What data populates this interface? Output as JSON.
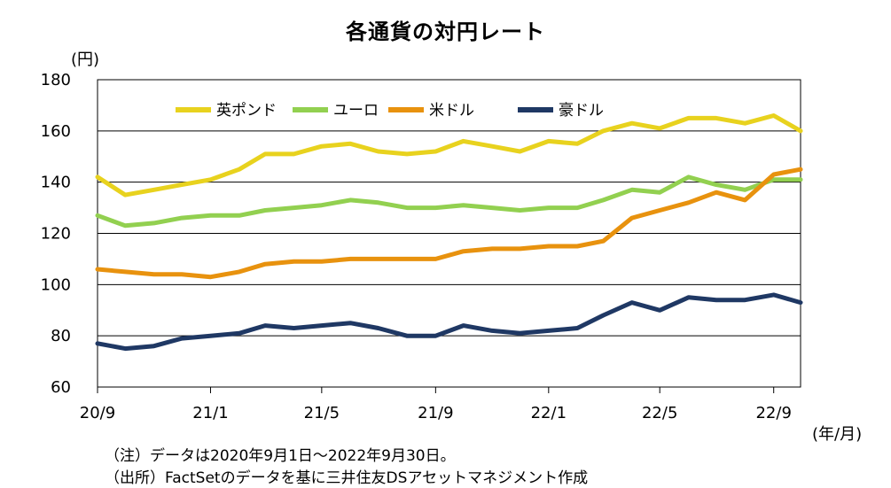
{
  "chart_data": {
    "type": "line",
    "title": "各通貨の対円レート",
    "y_unit": "(円)",
    "x_unit": "(年/月)",
    "ylim": [
      60,
      180
    ],
    "yticks": [
      60,
      80,
      100,
      120,
      140,
      160,
      180
    ],
    "xlim": [
      "2020-09-01",
      "2022-09-30"
    ],
    "xticks": [
      {
        "label": "20/9",
        "date": "2020-09-01"
      },
      {
        "label": "21/1",
        "date": "2021-01-01"
      },
      {
        "label": "21/5",
        "date": "2021-05-01"
      },
      {
        "label": "21/9",
        "date": "2021-09-01"
      },
      {
        "label": "22/1",
        "date": "2022-01-01"
      },
      {
        "label": "22/5",
        "date": "2022-05-01"
      },
      {
        "label": "22/9",
        "date": "2022-09-01"
      }
    ],
    "grid": "horizontal",
    "legend_position": "top",
    "x": [
      "2020-09",
      "2020-10",
      "2020-11",
      "2020-12",
      "2021-01",
      "2021-02",
      "2021-03",
      "2021-04",
      "2021-05",
      "2021-06",
      "2021-07",
      "2021-08",
      "2021-09",
      "2021-10",
      "2021-11",
      "2021-12",
      "2022-01",
      "2022-02",
      "2022-03",
      "2022-04",
      "2022-05",
      "2022-06",
      "2022-07",
      "2022-08",
      "2022-09",
      "2022-09-30"
    ],
    "series": [
      {
        "name": "英ポンド",
        "color": "#e8d21e",
        "values": [
          142,
          135,
          137,
          139,
          141,
          145,
          151,
          151,
          154,
          155,
          152,
          151,
          152,
          156,
          154,
          152,
          156,
          155,
          160,
          163,
          161,
          165,
          165,
          163,
          166,
          160
        ]
      },
      {
        "name": "ユーロ",
        "color": "#92d050",
        "values": [
          127,
          123,
          124,
          126,
          127,
          127,
          129,
          130,
          131,
          133,
          132,
          130,
          130,
          131,
          130,
          129,
          130,
          130,
          133,
          137,
          136,
          142,
          139,
          137,
          141,
          141
        ]
      },
      {
        "name": "米ドル",
        "color": "#e8920e",
        "values": [
          106,
          105,
          104,
          104,
          103,
          105,
          108,
          109,
          109,
          110,
          110,
          110,
          110,
          113,
          114,
          114,
          115,
          115,
          117,
          126,
          129,
          132,
          136,
          133,
          143,
          145
        ]
      },
      {
        "name": "豪ドル",
        "color": "#1f3864",
        "values": [
          77,
          75,
          76,
          79,
          80,
          81,
          84,
          83,
          84,
          85,
          83,
          80,
          80,
          84,
          82,
          81,
          82,
          83,
          88,
          93,
          90,
          95,
          94,
          94,
          96,
          93
        ]
      }
    ]
  },
  "notes": {
    "line1": "（注）データは2020年9月1日～2022年9月30日。",
    "line2": "（出所）FactSetのデータを基に三井住友DSアセットマネジメント作成"
  }
}
